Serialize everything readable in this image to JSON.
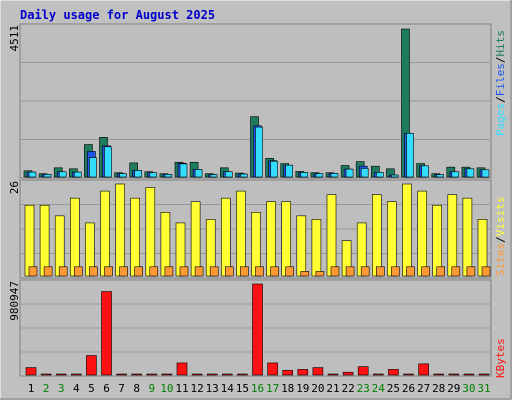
{
  "title": "Daily usage for August 2025",
  "colors": {
    "background": "#c0c0c0",
    "plot": "#bebebe",
    "hits": "#1e7b5e",
    "files": "#2255ee",
    "pages": "#33ddff",
    "visits": "#ffff33",
    "sites": "#ff9933",
    "kbytes": "#ff1111",
    "weekend_day": "#008000",
    "weekday_day": "#000000",
    "title": "#0000cc"
  },
  "chart_data": [
    {
      "type": "bar",
      "name": "Pages / Files / Hits",
      "ymax_label": "4511",
      "ylim": [
        0,
        4511
      ],
      "categories": [
        "1",
        "2",
        "3",
        "4",
        "5",
        "6",
        "7",
        "8",
        "9",
        "10",
        "11",
        "12",
        "13",
        "14",
        "15",
        "16",
        "17",
        "18",
        "19",
        "20",
        "21",
        "22",
        "23",
        "24",
        "25",
        "26",
        "27",
        "28",
        "29",
        "30",
        "31"
      ],
      "series_labels": [
        {
          "name": "Pages",
          "color": "#33ddff"
        },
        {
          "name": "Files",
          "color": "#2255ee"
        },
        {
          "name": "Hits",
          "color": "#1e7b5e"
        }
      ],
      "series": [
        {
          "name": "Hits",
          "values": [
            190,
            100,
            280,
            250,
            990,
            1210,
            130,
            430,
            160,
            100,
            450,
            450,
            100,
            280,
            120,
            1840,
            570,
            410,
            170,
            130,
            130,
            350,
            470,
            330,
            250,
            4511,
            410,
            100,
            300,
            300,
            280
          ]
        },
        {
          "name": "Files",
          "values": [
            150,
            80,
            160,
            150,
            780,
            950,
            100,
            200,
            130,
            80,
            420,
            230,
            70,
            160,
            90,
            1560,
            500,
            360,
            140,
            100,
            110,
            240,
            330,
            140,
            60,
            1330,
            340,
            70,
            160,
            250,
            220
          ]
        },
        {
          "name": "Pages",
          "values": [
            150,
            80,
            160,
            150,
            590,
            920,
            100,
            200,
            130,
            80,
            400,
            230,
            70,
            160,
            90,
            1520,
            480,
            360,
            140,
            100,
            110,
            240,
            260,
            140,
            60,
            1330,
            340,
            70,
            160,
            250,
            220
          ]
        }
      ]
    },
    {
      "type": "bar",
      "name": "Sites / Visits",
      "ymax_label": "26",
      "ylim": [
        0,
        26
      ],
      "categories": [
        "1",
        "2",
        "3",
        "4",
        "5",
        "6",
        "7",
        "8",
        "9",
        "10",
        "11",
        "12",
        "13",
        "14",
        "15",
        "16",
        "17",
        "18",
        "19",
        "20",
        "21",
        "22",
        "23",
        "24",
        "25",
        "26",
        "27",
        "28",
        "29",
        "30",
        "31"
      ],
      "series_labels": [
        {
          "name": "Sites",
          "color": "#ff9933"
        },
        {
          "name": "Visits",
          "color": "#ffff33"
        }
      ],
      "series": [
        {
          "name": "Visits",
          "values": [
            20,
            20,
            17,
            22,
            15,
            24,
            26,
            22,
            25,
            18,
            15,
            21,
            16,
            22,
            24,
            18,
            21,
            21,
            17,
            16,
            23,
            10,
            15,
            23,
            21,
            26,
            24,
            20,
            23,
            22,
            16
          ]
        },
        {
          "name": "Sites",
          "values": [
            2,
            2,
            2,
            2,
            2,
            2,
            2,
            2,
            2,
            2,
            2,
            2,
            2,
            2,
            2,
            2,
            2,
            2,
            1,
            1,
            2,
            2,
            2,
            2,
            2,
            2,
            2,
            2,
            2,
            2,
            2
          ]
        }
      ]
    },
    {
      "type": "bar",
      "name": "KBytes",
      "ymax_label": "980947",
      "ylim": [
        0,
        980947
      ],
      "categories": [
        "1",
        "2",
        "3",
        "4",
        "5",
        "6",
        "7",
        "8",
        "9",
        "10",
        "11",
        "12",
        "13",
        "14",
        "15",
        "16",
        "17",
        "18",
        "19",
        "20",
        "21",
        "22",
        "23",
        "24",
        "25",
        "26",
        "27",
        "28",
        "29",
        "30",
        "31"
      ],
      "series_labels": [
        {
          "name": "KBytes",
          "color": "#ff1111"
        }
      ],
      "series": [
        {
          "name": "KBytes",
          "values": [
            80000,
            8000,
            8000,
            8000,
            210000,
            900000,
            8000,
            8000,
            8000,
            8000,
            130000,
            8000,
            8000,
            8000,
            8000,
            980947,
            130000,
            50000,
            60000,
            80000,
            8000,
            30000,
            90000,
            10000,
            60000,
            8000,
            120000,
            8000,
            8000,
            8000,
            8000
          ]
        }
      ]
    }
  ],
  "x_axis": {
    "labels": [
      "1",
      "2",
      "3",
      "4",
      "5",
      "6",
      "7",
      "8",
      "9",
      "10",
      "11",
      "12",
      "13",
      "14",
      "15",
      "16",
      "17",
      "18",
      "19",
      "20",
      "21",
      "22",
      "23",
      "24",
      "25",
      "26",
      "27",
      "28",
      "29",
      "30",
      "31"
    ],
    "weekend": [
      2,
      3,
      9,
      10,
      16,
      17,
      23,
      24,
      30,
      31
    ]
  }
}
